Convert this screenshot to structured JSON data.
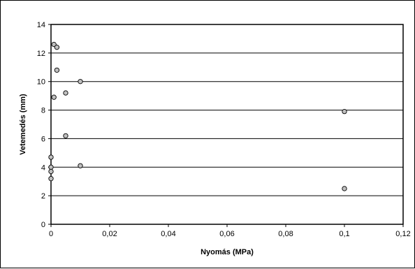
{
  "chart_data": {
    "type": "scatter",
    "title": "",
    "xlabel": "Nyomás (MPa)",
    "ylabel": "Vetemedés (mm)",
    "xlim": [
      0,
      0.12
    ],
    "ylim": [
      0,
      14
    ],
    "x_ticks": [
      0,
      0.02,
      0.04,
      0.06,
      0.08,
      0.1,
      0.12
    ],
    "x_tick_labels": [
      "0",
      "0,02",
      "0,04",
      "0,06",
      "0,08",
      "0,1",
      "0,12"
    ],
    "y_ticks": [
      0,
      2,
      4,
      6,
      8,
      10,
      12,
      14
    ],
    "y_tick_labels": [
      "0",
      "2",
      "4",
      "6",
      "8",
      "10",
      "12",
      "14"
    ],
    "grid": "horizontal",
    "legend": "none",
    "marker_color": "#c0c0c0",
    "series": [
      {
        "points": [
          {
            "x": 0.001,
            "y": 12.6
          },
          {
            "x": 0.002,
            "y": 12.4
          },
          {
            "x": 0.002,
            "y": 10.8
          },
          {
            "x": 0.01,
            "y": 10.0
          },
          {
            "x": 0.005,
            "y": 9.2
          },
          {
            "x": 0.001,
            "y": 8.9
          },
          {
            "x": 0.1,
            "y": 7.9
          },
          {
            "x": 0.005,
            "y": 6.2
          },
          {
            "x": 0.0,
            "y": 4.7
          },
          {
            "x": 0.0,
            "y": 4.0
          },
          {
            "x": 0.01,
            "y": 4.1
          },
          {
            "x": 0.0,
            "y": 3.7
          },
          {
            "x": 0.0,
            "y": 3.2
          },
          {
            "x": 0.1,
            "y": 2.5
          }
        ]
      }
    ]
  }
}
